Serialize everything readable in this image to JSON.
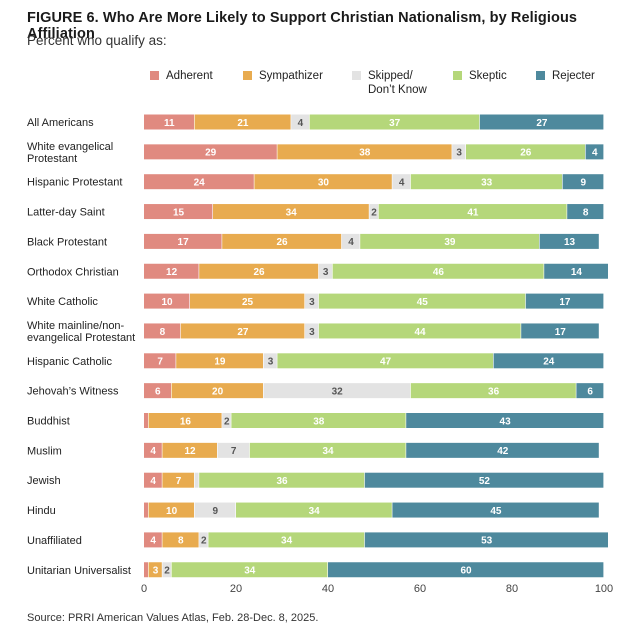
{
  "title": "FIGURE 6.  Who Are More Likely to Support Christian Nationalism, by Religious Affiliation",
  "subtitle": "Percent who qualify as:",
  "source": "Source: PRRI American Values Atlas, Feb. 28-Dec. 8, 2025.",
  "colors": {
    "Adherent": "#e08a80",
    "Sympathizer": "#e8ab4f",
    "Skipped": "#e3e3e3",
    "Skeptic": "#b5d77a",
    "Rejecter": "#4e899d"
  },
  "chart_data": {
    "type": "bar",
    "orientation": "horizontal",
    "stacked": true,
    "title": "FIGURE 6.  Who Are More Likely to Support Christian Nationalism, by Religious Affiliation",
    "subtitle": "Percent who qualify as:",
    "xlim": [
      0,
      100
    ],
    "xticks": [
      0,
      20,
      40,
      60,
      80,
      100
    ],
    "legend": [
      "Adherent",
      "Sympathizer",
      "Skipped/ Don’t Know",
      "Skeptic",
      "Rejecter"
    ],
    "categories": [
      [
        "All Americans"
      ],
      [
        "White evangelical",
        "Protestant"
      ],
      [
        "Hispanic Protestant"
      ],
      [
        "Latter-day Saint"
      ],
      [
        "Black Protestant"
      ],
      [
        "Orthodox Christian"
      ],
      [
        "White Catholic"
      ],
      [
        "White mainline/non-",
        "evangelical Protestant"
      ],
      [
        "Hispanic Catholic"
      ],
      [
        "Jehovah’s Witness"
      ],
      [
        "Buddhist"
      ],
      [
        "Muslim"
      ],
      [
        "Jewish"
      ],
      [
        "Hindu"
      ],
      [
        "Unaffiliated"
      ],
      [
        "Unitarian Universalist"
      ]
    ],
    "series": [
      {
        "name": "Adherent",
        "values": [
          11,
          29,
          24,
          15,
          17,
          12,
          10,
          8,
          7,
          6,
          1,
          4,
          4,
          1,
          4,
          1
        ]
      },
      {
        "name": "Sympathizer",
        "values": [
          21,
          38,
          30,
          34,
          26,
          26,
          25,
          27,
          19,
          20,
          16,
          12,
          7,
          10,
          8,
          3
        ]
      },
      {
        "name": "Skipped/ Don’t Know",
        "values": [
          4,
          3,
          4,
          2,
          4,
          3,
          3,
          3,
          3,
          32,
          2,
          7,
          1,
          9,
          2,
          2
        ]
      },
      {
        "name": "Skeptic",
        "values": [
          37,
          26,
          33,
          41,
          39,
          46,
          45,
          44,
          47,
          36,
          38,
          34,
          36,
          34,
          34,
          34
        ]
      },
      {
        "name": "Rejecter",
        "values": [
          27,
          4,
          9,
          8,
          13,
          14,
          17,
          17,
          24,
          6,
          43,
          42,
          52,
          45,
          53,
          60
        ]
      }
    ],
    "labels": [
      [
        "11",
        "21",
        "4",
        "37",
        "27"
      ],
      [
        "29",
        "38",
        "3",
        "26",
        "4"
      ],
      [
        "24",
        "30",
        "4",
        "33",
        "9"
      ],
      [
        "15",
        "34",
        "2",
        "41",
        "8"
      ],
      [
        "17",
        "26",
        "4",
        "39",
        "13"
      ],
      [
        "12",
        "26",
        "3",
        "46",
        "14"
      ],
      [
        "10",
        "25",
        "3",
        "45",
        "17"
      ],
      [
        "8",
        "27",
        "3",
        "44",
        "17"
      ],
      [
        "7",
        "19",
        "3",
        "47",
        "24"
      ],
      [
        "6",
        "20",
        "32",
        "36",
        "6"
      ],
      [
        "",
        "16",
        "2",
        "38",
        "43"
      ],
      [
        "4",
        "12",
        "7",
        "34",
        "42"
      ],
      [
        "4",
        "7",
        "",
        "36",
        "52"
      ],
      [
        "",
        "10",
        "9",
        "34",
        "45"
      ],
      [
        "4",
        "8",
        "2",
        "34",
        "53"
      ],
      [
        "",
        "3",
        "2",
        "34",
        "60"
      ]
    ]
  }
}
